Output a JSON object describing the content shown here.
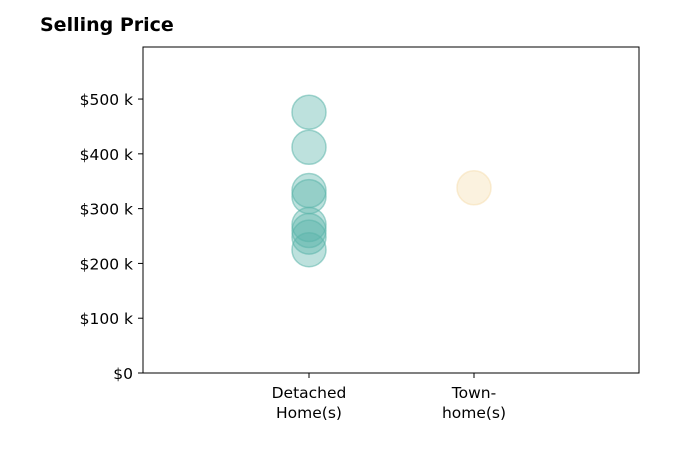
{
  "chart_data": {
    "type": "scatter",
    "title": "Selling Price",
    "categories": [
      "Detached Home(s)",
      "Town- home(s)"
    ],
    "category_label_lines": [
      [
        "Detached",
        "Home(s)"
      ],
      [
        "Town-",
        "home(s)"
      ]
    ],
    "y_ticks": [
      0,
      100000,
      200000,
      300000,
      400000,
      500000
    ],
    "y_tick_labels": [
      "$0",
      "$100 k",
      "$200 k",
      "$300 k",
      "$400 k",
      "$500 k"
    ],
    "ylim": [
      0,
      595000
    ],
    "grid": false,
    "series": [
      {
        "category": "Detached Home(s)",
        "color": "#5bb5aa",
        "values": [
          476000,
          412000,
          333000,
          322000,
          271000,
          260000,
          248000,
          225000
        ]
      },
      {
        "category": "Town- home(s)",
        "color": "#f5deb0",
        "values": [
          338000
        ]
      }
    ]
  }
}
